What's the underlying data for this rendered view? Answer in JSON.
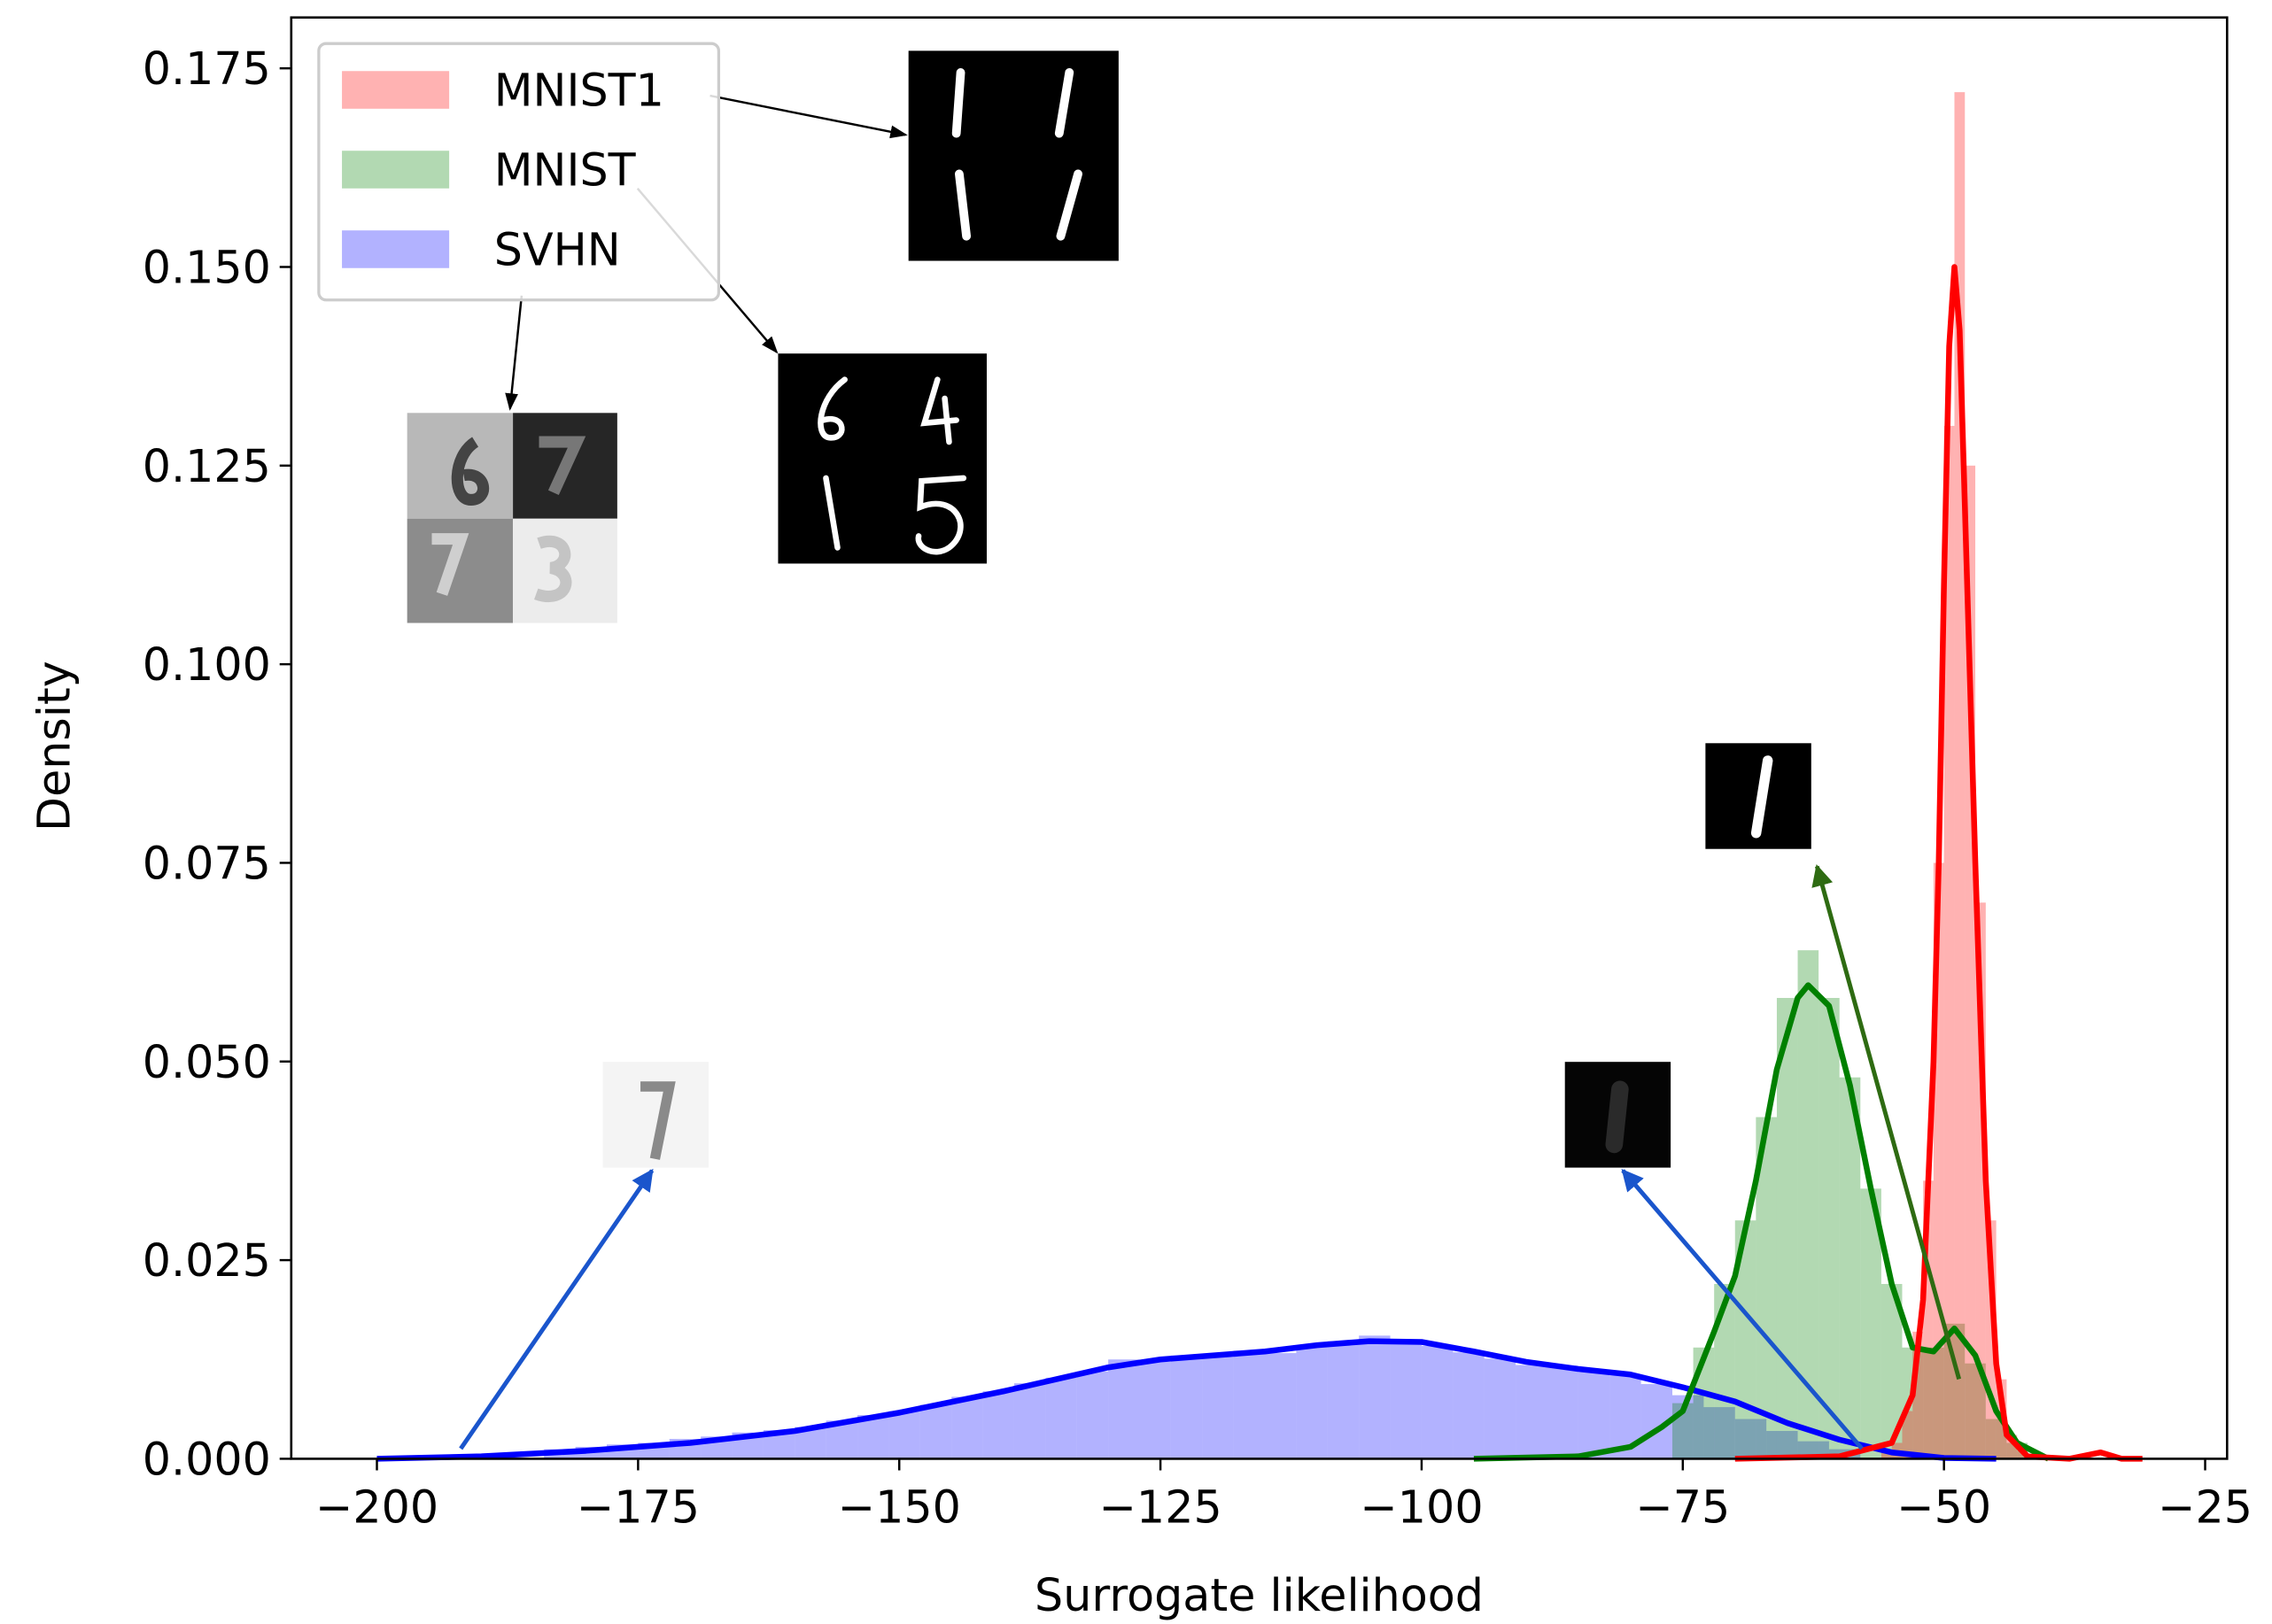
{
  "chart_data": {
    "type": "histogram",
    "xlabel": "Surrogate likelihood",
    "ylabel": "Density",
    "xlim": [
      -208.2,
      -22.9
    ],
    "ylim": [
      0,
      0.1814
    ],
    "xticks": [
      {
        "value": -200,
        "label": "−200"
      },
      {
        "value": -175,
        "label": "−175"
      },
      {
        "value": -150,
        "label": "−150"
      },
      {
        "value": -125,
        "label": "−125"
      },
      {
        "value": -100,
        "label": "−100"
      },
      {
        "value": -75,
        "label": "−75"
      },
      {
        "value": -50,
        "label": "−50"
      },
      {
        "value": -25,
        "label": "−25"
      }
    ],
    "yticks": [
      {
        "value": 0,
        "label": "0.000"
      },
      {
        "value": 0.025,
        "label": "0.025"
      },
      {
        "value": 0.05,
        "label": "0.050"
      },
      {
        "value": 0.075,
        "label": "0.075"
      },
      {
        "value": 0.1,
        "label": "0.100"
      },
      {
        "value": 0.125,
        "label": "0.125"
      },
      {
        "value": 0.15,
        "label": "0.150"
      },
      {
        "value": 0.175,
        "label": "0.175"
      }
    ],
    "legend": "upper left",
    "series": [
      {
        "name": "MNIST1",
        "color": "#ff0000",
        "bins": [
          -56,
          -55,
          -54,
          -53,
          -52,
          -51,
          -50,
          -49,
          -48,
          -47,
          -46,
          -45,
          -44,
          -43,
          -42,
          -41,
          -40
        ],
        "values": [
          0.001,
          0.002,
          0.006,
          0.016,
          0.035,
          0.075,
          0.13,
          0.172,
          0.125,
          0.07,
          0.03,
          0.01,
          0.003,
          0.001,
          0.0005,
          0.0002
        ],
        "kde": {
          "x": [
            -70,
            -60,
            -55,
            -53,
            -52,
            -51,
            -50.5,
            -50,
            -49.5,
            -49,
            -48.5,
            -48,
            -47,
            -46,
            -45,
            -44,
            -42,
            -38,
            -35,
            -33,
            -31
          ],
          "y": [
            0,
            0.0003,
            0.002,
            0.008,
            0.02,
            0.05,
            0.075,
            0.11,
            0.14,
            0.15,
            0.142,
            0.12,
            0.075,
            0.035,
            0.012,
            0.003,
            0.0003,
            0,
            0.0008,
            0,
            0
          ]
        }
      },
      {
        "name": "MNIST",
        "color": "#008000",
        "bins": [
          -76,
          -74,
          -72,
          -70,
          -68,
          -66,
          -64,
          -62,
          -60,
          -58,
          -56,
          -54,
          -52,
          -50,
          -48,
          -46,
          -44,
          -42
        ],
        "values": [
          0.007,
          0.014,
          0.022,
          0.03,
          0.043,
          0.058,
          0.064,
          0.058,
          0.048,
          0.034,
          0.022,
          0.014,
          0.014,
          0.017,
          0.012,
          0.005,
          0.002
        ],
        "kde": {
          "x": [
            -95,
            -85,
            -80,
            -77,
            -75,
            -72,
            -70,
            -68,
            -66,
            -64,
            -63,
            -61,
            -59,
            -57,
            -55,
            -53,
            -51,
            -49,
            -47,
            -45,
            -43,
            -40
          ],
          "y": [
            0,
            0.0003,
            0.0015,
            0.004,
            0.006,
            0.016,
            0.023,
            0.035,
            0.049,
            0.058,
            0.0596,
            0.057,
            0.047,
            0.034,
            0.022,
            0.014,
            0.0135,
            0.0164,
            0.013,
            0.006,
            0.002,
            0
          ]
        }
      },
      {
        "name": "SVHN",
        "color": "#0000ff",
        "bins": [
          -184,
          -181,
          -178,
          -175,
          -172,
          -169,
          -166,
          -163,
          -160,
          -157,
          -154,
          -151,
          -148,
          -145,
          -142,
          -139,
          -136,
          -133,
          -130,
          -127,
          -124,
          -121,
          -118,
          -115,
          -112,
          -109,
          -106,
          -103,
          -100,
          -97,
          -94,
          -91,
          -88,
          -85,
          -82,
          -79,
          -76,
          -73,
          -70,
          -67,
          -64,
          -61,
          -58
        ],
        "values": [
          0.0012,
          0.0015,
          0.0018,
          0.002,
          0.0025,
          0.0028,
          0.0033,
          0.0036,
          0.004,
          0.0048,
          0.0055,
          0.006,
          0.0068,
          0.0078,
          0.0085,
          0.0095,
          0.0102,
          0.011,
          0.0125,
          0.0122,
          0.013,
          0.0128,
          0.0136,
          0.0133,
          0.0142,
          0.0148,
          0.0155,
          0.0146,
          0.0142,
          0.0134,
          0.0126,
          0.0118,
          0.0116,
          0.0109,
          0.0105,
          0.0094,
          0.008,
          0.0065,
          0.005,
          0.0035,
          0.0022,
          0.0012
        ],
        "kde": {
          "x": [
            -200,
            -190,
            -180,
            -170,
            -160,
            -150,
            -140,
            -130,
            -125,
            -120,
            -115,
            -110,
            -105,
            -100,
            -95,
            -90,
            -85,
            -80,
            -75,
            -70,
            -65,
            -60,
            -55,
            -50,
            -45
          ],
          "y": [
            0,
            0.0003,
            0.001,
            0.002,
            0.0035,
            0.0058,
            0.0085,
            0.0115,
            0.0125,
            0.013,
            0.0135,
            0.0143,
            0.0148,
            0.0147,
            0.0135,
            0.0122,
            0.0113,
            0.0106,
            0.009,
            0.0072,
            0.0045,
            0.0024,
            0.0008,
            0.0001,
            0
          ]
        }
      }
    ]
  }
}
